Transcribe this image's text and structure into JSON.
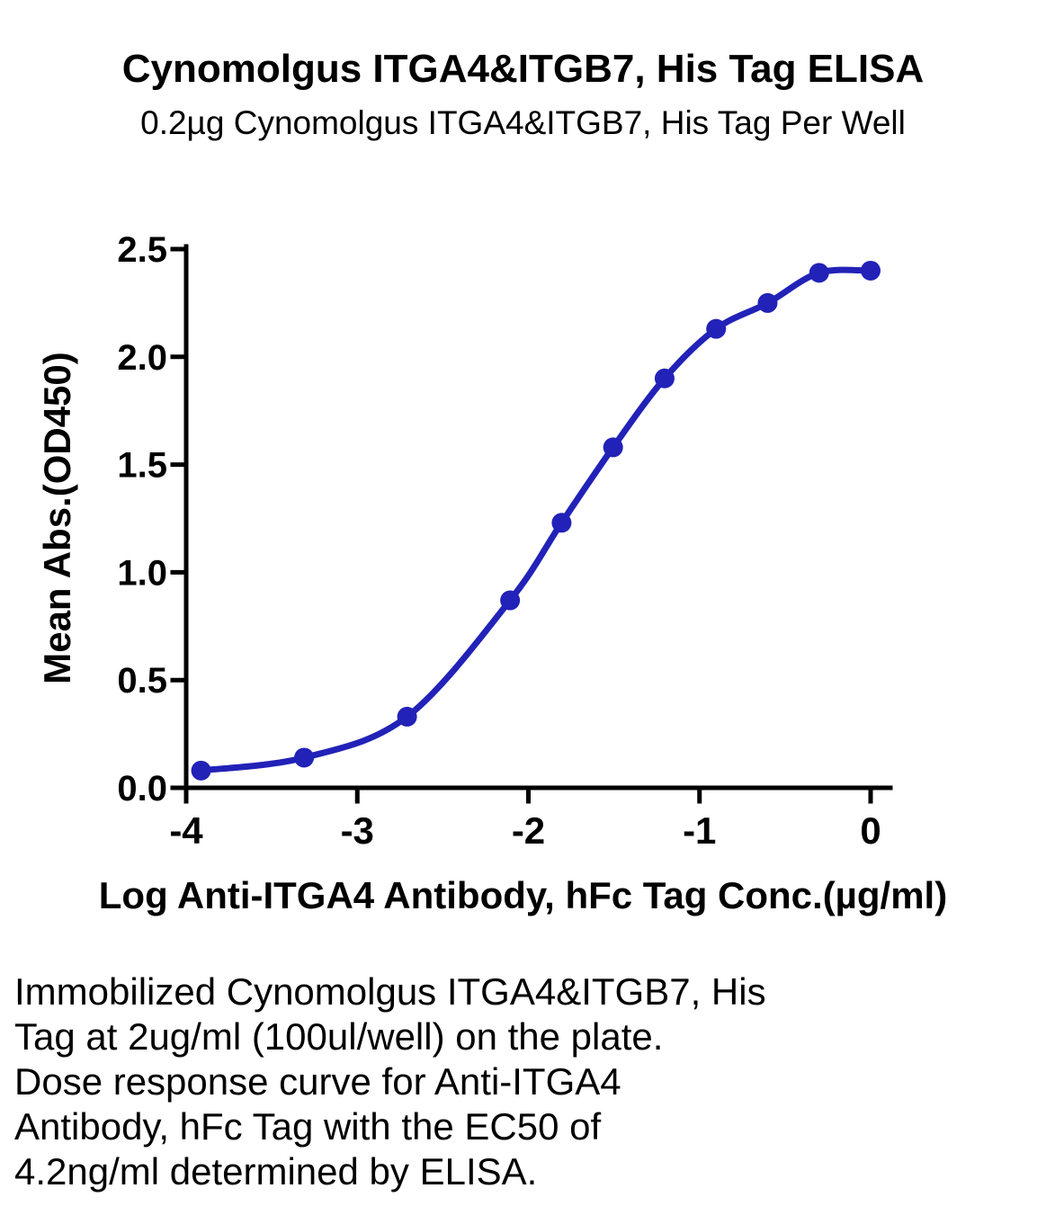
{
  "page": {
    "title": "Cynomolgus ITGA4&ITGB7, His Tag ELISA",
    "subtitle": "0.2µg Cynomolgus ITGA4&ITGB7, His Tag Per Well",
    "xlabel": "Log Anti-ITGA4 Antibody, hFc Tag Conc.(µg/ml)",
    "caption_lines": [
      "Immobilized Cynomolgus ITGA4&ITGB7, His",
      "Tag at 2ug/ml (100ul/well) on the plate.",
      "Dose response curve for Anti-ITGA4",
      "Antibody, hFc Tag with the EC50 of",
      "4.2ng/ml determined by ELISA."
    ]
  },
  "chart_data": {
    "type": "scatter",
    "title": "Cynomolgus ITGA4&ITGB7, His Tag ELISA",
    "subtitle": "0.2µg Cynomolgus ITGA4&ITGB7, His Tag Per Well",
    "xlabel": "Log Anti-ITGA4 Antibody, hFc Tag Conc.(µg/ml)",
    "ylabel": "Mean Abs.(OD450)",
    "xlim": [
      -4,
      0
    ],
    "ylim": [
      0,
      2.5
    ],
    "xticks": [
      -4,
      -3,
      -2,
      -1,
      0
    ],
    "yticks": [
      0.0,
      0.5,
      1.0,
      1.5,
      2.0,
      2.5
    ],
    "grid": false,
    "legend_position": "none",
    "curve_style": "4PL sigmoid fit through points",
    "ec50_annotation": "EC50 = 4.2 ng/ml (stated in caption)",
    "series": [
      {
        "name": "Anti-ITGA4 Antibody, hFc Tag",
        "color": "#2222b8",
        "marker": "circle",
        "x": [
          -3.913,
          -3.311,
          -2.709,
          -2.107,
          -1.806,
          -1.505,
          -1.204,
          -0.903,
          -0.602,
          -0.301,
          0
        ],
        "y": [
          0.08,
          0.14,
          0.33,
          0.87,
          1.23,
          1.58,
          1.9,
          2.13,
          2.25,
          2.39,
          2.4
        ]
      }
    ]
  }
}
